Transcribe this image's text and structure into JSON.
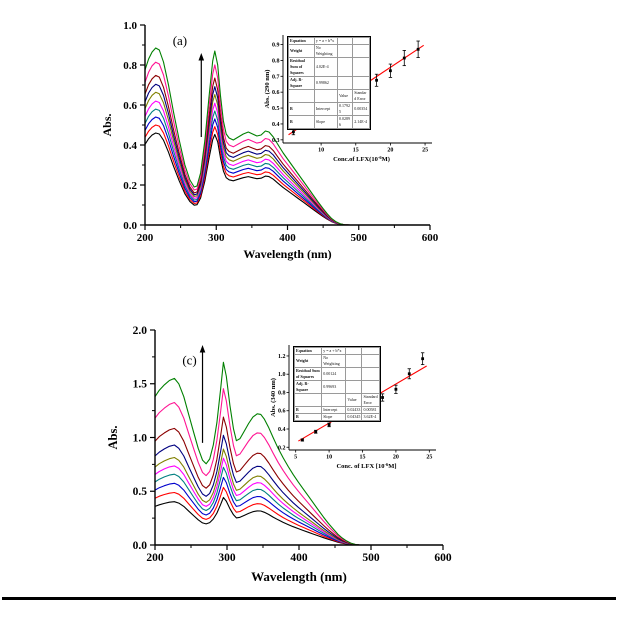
{
  "page": {
    "background": "#ffffff",
    "bottom_rule_color": "#000000"
  },
  "chart_data": [
    {
      "id": "a",
      "type": "line",
      "panel_label": "(a)",
      "xlabel": "Wavelength (nm)",
      "ylabel": "Abs.",
      "xlim": [
        200,
        600
      ],
      "ylim": [
        0,
        1.0
      ],
      "x_ticks": [
        200,
        300,
        400,
        500,
        600
      ],
      "x_minor_ticks": [
        250,
        350,
        450,
        550
      ],
      "y_ticks": [
        0.0,
        0.2,
        0.4,
        0.6,
        0.8,
        1.0
      ],
      "y_minor_ticks": [
        0.1,
        0.3,
        0.5,
        0.7,
        0.9
      ],
      "grid": false,
      "arrow": {
        "x": 279,
        "y_from": 0.44,
        "y_to": 0.86,
        "meaning": "absorbance increases with concentration"
      },
      "panel_label_pos": {
        "x": 249,
        "y": 0.9
      },
      "base_curve": [
        [
          200,
          0.775
        ],
        [
          205,
          0.83
        ],
        [
          210,
          0.865
        ],
        [
          215,
          0.885
        ],
        [
          220,
          0.875
        ],
        [
          226,
          0.815
        ],
        [
          233,
          0.7
        ],
        [
          240,
          0.565
        ],
        [
          248,
          0.425
        ],
        [
          256,
          0.3
        ],
        [
          263,
          0.225
        ],
        [
          269,
          0.19
        ],
        [
          273,
          0.195
        ],
        [
          278,
          0.26
        ],
        [
          284,
          0.42
        ],
        [
          290,
          0.645
        ],
        [
          295,
          0.82
        ],
        [
          298,
          0.87
        ],
        [
          302,
          0.8
        ],
        [
          306,
          0.645
        ],
        [
          310,
          0.52
        ],
        [
          314,
          0.455
        ],
        [
          318,
          0.435
        ],
        [
          324,
          0.425
        ],
        [
          331,
          0.44
        ],
        [
          338,
          0.455
        ],
        [
          345,
          0.465
        ],
        [
          351,
          0.455
        ],
        [
          357,
          0.445
        ],
        [
          363,
          0.45
        ],
        [
          369,
          0.47
        ],
        [
          374,
          0.465
        ],
        [
          380,
          0.44
        ],
        [
          387,
          0.4
        ],
        [
          394,
          0.36
        ],
        [
          401,
          0.325
        ],
        [
          408,
          0.29
        ],
        [
          415,
          0.255
        ],
        [
          422,
          0.22
        ],
        [
          429,
          0.185
        ],
        [
          436,
          0.15
        ],
        [
          443,
          0.115
        ],
        [
          450,
          0.082
        ],
        [
          456,
          0.055
        ],
        [
          462,
          0.032
        ],
        [
          468,
          0.016
        ],
        [
          474,
          0.006
        ],
        [
          480,
          0.001
        ],
        [
          488,
          0
        ]
      ],
      "series": [
        {
          "name": "curve-1",
          "scale": 0.52,
          "color": "#000000"
        },
        {
          "name": "curve-2",
          "scale": 0.565,
          "color": "#ff0000"
        },
        {
          "name": "curve-3",
          "scale": 0.61,
          "color": "#0000cd"
        },
        {
          "name": "curve-4",
          "scale": 0.655,
          "color": "#008080"
        },
        {
          "name": "curve-5",
          "scale": 0.7,
          "color": "#ff00ff"
        },
        {
          "name": "curve-6",
          "scale": 0.75,
          "color": "#808000"
        },
        {
          "name": "curve-7",
          "scale": 0.795,
          "color": "#000080"
        },
        {
          "name": "curve-8",
          "scale": 0.845,
          "color": "#8b0000"
        },
        {
          "name": "curve-9",
          "scale": 0.92,
          "color": "#ff1493"
        },
        {
          "name": "curve-10",
          "scale": 1.0,
          "color": "#008000"
        }
      ],
      "inset": {
        "type": "scatter",
        "xlabel_parts": [
          "Conc.of LFX(10",
          "-6",
          "M)"
        ],
        "ylabel": "Abs. (290 nm)",
        "xlim": [
          4.5,
          26
        ],
        "ylim": [
          0.28,
          0.96
        ],
        "x_ticks": [
          10,
          15,
          20,
          25
        ],
        "y_ticks": [
          0.3,
          0.4,
          0.5,
          0.6,
          0.7,
          0.8,
          0.9
        ],
        "x": [
          6,
          8,
          10,
          12,
          14,
          16,
          18,
          20,
          22,
          24
        ],
        "y": [
          0.35,
          0.405,
          0.46,
          0.515,
          0.565,
          0.62,
          0.675,
          0.735,
          0.815,
          0.87
        ],
        "yerr": [
          0.018,
          0.02,
          0.025,
          0.028,
          0.03,
          0.035,
          0.038,
          0.042,
          0.048,
          0.052
        ],
        "fit": {
          "x1": 5.3,
          "y1": 0.332,
          "x2": 24.8,
          "y2": 0.895,
          "color": "#ff0000"
        },
        "marker_color": "#000000",
        "table_rows": [
          [
            "Equation",
            "y = a + b*x",
            "",
            ""
          ],
          [
            "Weight",
            "No Weighting",
            "",
            ""
          ],
          [
            "Residual Sum of Squares",
            "4.02E-4",
            "",
            ""
          ],
          [
            "Adj. R-Square",
            "0.99862",
            "",
            ""
          ],
          [
            "",
            "",
            "Value",
            "Standard Error"
          ],
          [
            "B",
            "Intercept",
            "0.17925",
            "0.00354"
          ],
          [
            "B",
            "Slope",
            "0.02896",
            "2.14E-4"
          ]
        ]
      }
    },
    {
      "id": "c",
      "type": "line",
      "panel_label": "(c)",
      "xlabel": "Wavelength (nm)",
      "ylabel": "Abs.",
      "xlim": [
        200,
        600
      ],
      "ylim": [
        0,
        2.0
      ],
      "x_ticks": [
        200,
        300,
        400,
        500,
        600
      ],
      "x_minor_ticks": [
        250,
        350,
        450,
        550
      ],
      "y_ticks": [
        0.0,
        0.5,
        1.0,
        1.5,
        2.0
      ],
      "y_minor_ticks": [
        0.25,
        0.75,
        1.25,
        1.75
      ],
      "grid": false,
      "arrow": {
        "x": 266,
        "y_from": 0.95,
        "y_to": 1.86,
        "meaning": "absorbance increases with concentration"
      },
      "panel_label_pos": {
        "x": 248,
        "y": 1.68
      },
      "base_curve": [
        [
          200,
          1.38
        ],
        [
          206,
          1.44
        ],
        [
          213,
          1.49
        ],
        [
          220,
          1.53
        ],
        [
          227,
          1.55
        ],
        [
          233,
          1.5
        ],
        [
          240,
          1.38
        ],
        [
          247,
          1.21
        ],
        [
          254,
          1.04
        ],
        [
          260,
          0.9
        ],
        [
          266,
          0.79
        ],
        [
          271,
          0.755
        ],
        [
          276,
          0.8
        ],
        [
          281,
          0.93
        ],
        [
          286,
          1.14
        ],
        [
          291,
          1.44
        ],
        [
          295,
          1.7
        ],
        [
          299,
          1.57
        ],
        [
          304,
          1.3
        ],
        [
          309,
          1.08
        ],
        [
          313,
          0.97
        ],
        [
          318,
          0.99
        ],
        [
          324,
          1.06
        ],
        [
          330,
          1.13
        ],
        [
          336,
          1.19
        ],
        [
          342,
          1.22
        ],
        [
          347,
          1.215
        ],
        [
          352,
          1.17
        ],
        [
          358,
          1.09
        ],
        [
          364,
          1.0
        ],
        [
          371,
          0.9
        ],
        [
          378,
          0.81
        ],
        [
          385,
          0.73
        ],
        [
          392,
          0.655
        ],
        [
          399,
          0.585
        ],
        [
          406,
          0.52
        ],
        [
          413,
          0.455
        ],
        [
          420,
          0.39
        ],
        [
          427,
          0.325
        ],
        [
          434,
          0.26
        ],
        [
          441,
          0.2
        ],
        [
          448,
          0.145
        ],
        [
          454,
          0.1
        ],
        [
          460,
          0.065
        ],
        [
          466,
          0.038
        ],
        [
          472,
          0.018
        ],
        [
          478,
          0.006
        ],
        [
          484,
          0
        ]
      ],
      "series": [
        {
          "name": "curve-1",
          "scale": 0.26,
          "color": "#000000"
        },
        {
          "name": "curve-2",
          "scale": 0.315,
          "color": "#ff0000"
        },
        {
          "name": "curve-3",
          "scale": 0.37,
          "color": "#0000cd"
        },
        {
          "name": "curve-4",
          "scale": 0.425,
          "color": "#008080"
        },
        {
          "name": "curve-5",
          "scale": 0.475,
          "color": "#ff00ff"
        },
        {
          "name": "curve-6",
          "scale": 0.525,
          "color": "#808000"
        },
        {
          "name": "curve-7",
          "scale": 0.6,
          "color": "#000080"
        },
        {
          "name": "curve-8",
          "scale": 0.7,
          "color": "#8b0000"
        },
        {
          "name": "curve-9",
          "scale": 0.855,
          "color": "#ff1493"
        },
        {
          "name": "curve-10",
          "scale": 1.0,
          "color": "#008000"
        }
      ],
      "inset": {
        "type": "scatter",
        "xlabel_parts": [
          "Conc. of LFX [10",
          "-6",
          "M]"
        ],
        "ylabel": "Abs. (340 nm)",
        "xlim": [
          4,
          26
        ],
        "ylim": [
          0.17,
          1.32
        ],
        "x_ticks": [
          5,
          10,
          15,
          20,
          25
        ],
        "y_ticks": [
          0.2,
          0.4,
          0.6,
          0.8,
          1.0,
          1.2
        ],
        "x": [
          6,
          8,
          10,
          12,
          14,
          16,
          18,
          20,
          22,
          24
        ],
        "y": [
          0.28,
          0.37,
          0.445,
          0.535,
          0.61,
          0.655,
          0.745,
          0.835,
          1.005,
          1.17
        ],
        "yerr": [
          0.012,
          0.016,
          0.02,
          0.024,
          0.03,
          0.038,
          0.04,
          0.045,
          0.055,
          0.065
        ],
        "fit": {
          "x1": 5.4,
          "y1": 0.268,
          "x2": 24.6,
          "y2": 1.09,
          "color": "#ff0000"
        },
        "marker_color": "#000000",
        "table_rows": [
          [
            "Equation",
            "y = a + b*x",
            "",
            ""
          ],
          [
            "Weight",
            "No Weighting",
            "",
            ""
          ],
          [
            "Residual Sum of Squares",
            "0.00124",
            "",
            ""
          ],
          [
            "Adj. R-Square",
            "0.99693",
            "",
            ""
          ],
          [
            "",
            "",
            "Value",
            "Standard Error"
          ],
          [
            "B",
            "Intercept",
            "0.02433",
            "0.00581"
          ],
          [
            "B",
            "Slope",
            "0.04345",
            "3.62E-4"
          ]
        ]
      }
    }
  ]
}
